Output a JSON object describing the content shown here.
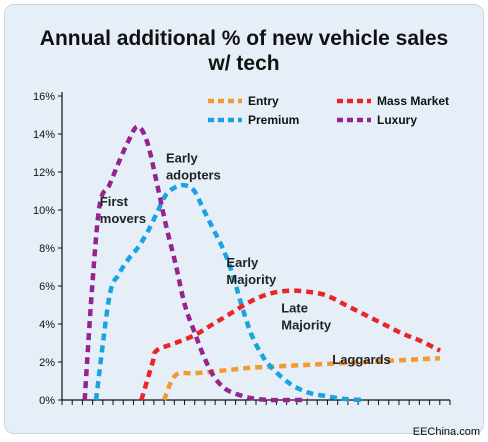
{
  "chart_data": {
    "type": "line",
    "title_line1": "Annual additional % of new vehicle sales",
    "title_line2": "w/ tech",
    "xlabel": "",
    "ylabel": "",
    "ylim": [
      0,
      16
    ],
    "xlim": [
      0,
      20
    ],
    "yticks": [
      "0%",
      "2%",
      "4%",
      "6%",
      "8%",
      "10%",
      "12%",
      "14%",
      "16%"
    ],
    "grid": false,
    "legend": "top-right",
    "series": [
      {
        "name": "Entry",
        "color": "#f39a2e",
        "x": [
          5.4,
          6.0,
          7.0,
          8.0,
          9.0,
          10.0,
          11.0,
          12.0,
          13.0,
          14.0,
          15.0,
          16.0,
          17.0,
          18.0,
          19.0,
          20.0
        ],
        "y": [
          0,
          1.3,
          1.4,
          1.5,
          1.6,
          1.7,
          1.75,
          1.8,
          1.85,
          1.9,
          1.95,
          2.0,
          2.05,
          2.1,
          2.15,
          2.2
        ]
      },
      {
        "name": "Premium",
        "color": "#1aa3e0",
        "x": [
          1.8,
          2.5,
          3.0,
          3.5,
          4.0,
          4.5,
          5.0,
          5.5,
          6.0,
          6.5,
          7.0,
          7.5,
          8.0,
          8.5,
          9.0,
          9.5,
          10.0,
          10.5,
          11.0,
          12.0,
          13.0,
          14.0,
          15.0,
          16.0
        ],
        "y": [
          0,
          5.4,
          6.6,
          7.4,
          8.0,
          8.8,
          9.8,
          10.8,
          11.2,
          11.3,
          11.0,
          10.0,
          9.0,
          8.0,
          6.7,
          5.0,
          3.5,
          2.5,
          1.8,
          0.9,
          0.4,
          0.2,
          0.05,
          0
        ]
      },
      {
        "name": "Mass Market",
        "color": "#e8262a",
        "x": [
          4.2,
          4.8,
          5.0,
          6.0,
          7.0,
          8.0,
          9.0,
          10.0,
          11.0,
          12.0,
          13.0,
          14.0,
          15.0,
          16.0,
          17.0,
          18.0,
          19.0,
          20.0
        ],
        "y": [
          0,
          2.0,
          2.6,
          3.0,
          3.4,
          4.0,
          4.6,
          5.2,
          5.6,
          5.75,
          5.7,
          5.5,
          5.0,
          4.5,
          4.0,
          3.5,
          3.1,
          2.6
        ]
      },
      {
        "name": "Luxury",
        "color": "#96248e",
        "x": [
          1.2,
          1.6,
          2.0,
          2.5,
          3.0,
          3.5,
          4.0,
          4.5,
          5.0,
          5.5,
          6.0,
          6.5,
          7.0,
          7.5,
          8.0,
          8.5,
          9.0,
          10.0,
          11.0,
          12.0,
          13.0
        ],
        "y": [
          0,
          6.0,
          10.3,
          11.3,
          12.5,
          13.6,
          14.4,
          13.6,
          11.5,
          9.2,
          7.2,
          5.0,
          3.6,
          2.3,
          1.3,
          0.7,
          0.4,
          0.1,
          0,
          0,
          0
        ]
      }
    ],
    "annotations": [
      {
        "lines": [
          "First",
          "movers"
        ],
        "x": 2.0,
        "y": 10.2
      },
      {
        "lines": [
          "Early",
          "adopters"
        ],
        "x": 5.5,
        "y": 12.5
      },
      {
        "lines": [
          "Early",
          "Majority"
        ],
        "x": 8.7,
        "y": 7.0
      },
      {
        "lines": [
          "Late",
          "Majority"
        ],
        "x": 11.6,
        "y": 4.6
      },
      {
        "lines": [
          "Laggards"
        ],
        "x": 14.3,
        "y": 1.9
      }
    ]
  },
  "source": "EEChina.com"
}
